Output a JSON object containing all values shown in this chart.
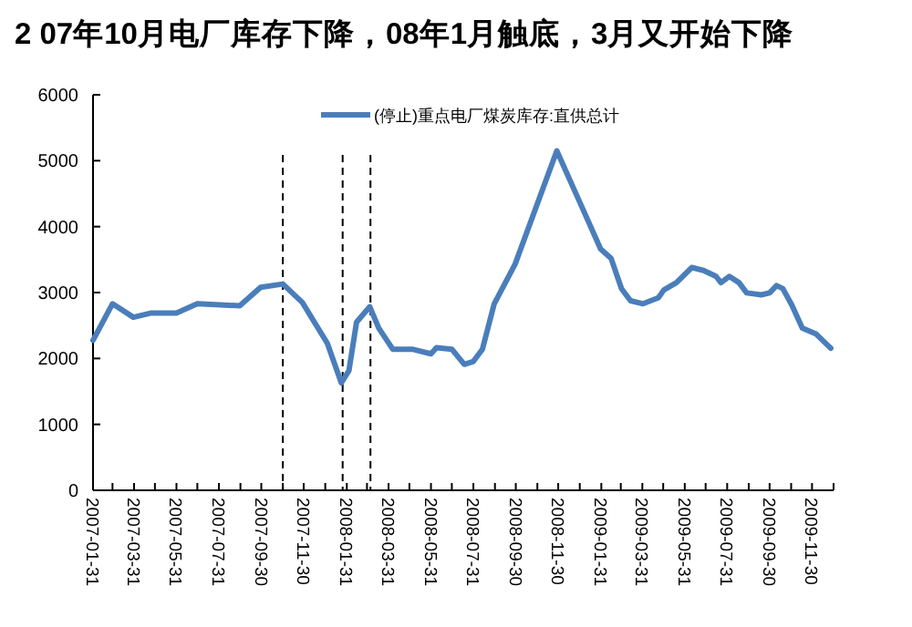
{
  "chart_data": {
    "type": "line",
    "title": "2 07年10月电厂库存下降，08年1月触底，3月又开始下降",
    "x": [
      "2007-01-31",
      "2007-02-28",
      "2007-03-30",
      "2007-04-25",
      "2007-05-31",
      "2007-06-30",
      "2007-08-30",
      "2007-09-29",
      "2007-10-31",
      "2007-11-28",
      "2008-01-03",
      "2008-01-23",
      "2008-02-03",
      "2008-02-14",
      "2008-03-04",
      "2008-03-17",
      "2008-04-06",
      "2008-05-04",
      "2008-05-31",
      "2008-06-08",
      "2008-06-30",
      "2008-07-18",
      "2008-07-31",
      "2008-08-13",
      "2008-08-30",
      "2008-09-29",
      "2008-11-28",
      "2008-12-30",
      "2009-01-30",
      "2009-02-14",
      "2009-03-01",
      "2009-03-14",
      "2009-04-01",
      "2009-04-23",
      "2009-05-01",
      "2009-05-19",
      "2009-06-10",
      "2009-06-27",
      "2009-07-15",
      "2009-07-22",
      "2009-08-03",
      "2009-08-17",
      "2009-08-28",
      "2009-09-18",
      "2009-09-30",
      "2009-10-10",
      "2009-10-19",
      "2009-11-01",
      "2009-11-16",
      "2009-12-06",
      "2009-12-27"
    ],
    "series": [
      {
        "name": "(停止)重点电厂煤炭库存:直供总计",
        "color": "#4a7ebb",
        "values": [
          2275,
          2830,
          2625,
          2690,
          2690,
          2830,
          2800,
          3080,
          3130,
          2850,
          2230,
          1630,
          1815,
          2550,
          2785,
          2460,
          2140,
          2140,
          2070,
          2165,
          2140,
          1910,
          1955,
          2140,
          2830,
          3430,
          5150,
          4395,
          3660,
          3520,
          3060,
          2875,
          2830,
          2920,
          3040,
          3150,
          3380,
          3335,
          3245,
          3150,
          3245,
          3150,
          2995,
          2965,
          2995,
          3105,
          3060,
          2810,
          2460,
          2370,
          2155
        ]
      }
    ],
    "xlim": [
      "2007-01-31",
      "2009-12-31"
    ],
    "xticks": [
      {
        "value": "2007-01-31",
        "label": "2007-01-31"
      },
      {
        "value": "2007-02-28",
        "label": null
      },
      {
        "value": "2007-03-31",
        "label": "2007-03-31"
      },
      {
        "value": "2007-04-30",
        "label": null
      },
      {
        "value": "2007-05-31",
        "label": "2007-05-31"
      },
      {
        "value": "2007-06-30",
        "label": null
      },
      {
        "value": "2007-07-31",
        "label": "2007-07-31"
      },
      {
        "value": "2007-08-31",
        "label": null
      },
      {
        "value": "2007-09-30",
        "label": "2007-09-30"
      },
      {
        "value": "2007-10-31",
        "label": null
      },
      {
        "value": "2007-11-30",
        "label": "2007-11-30"
      },
      {
        "value": "2007-12-31",
        "label": null
      },
      {
        "value": "2008-01-31",
        "label": "2008-01-31"
      },
      {
        "value": "2008-02-29",
        "label": null
      },
      {
        "value": "2008-03-31",
        "label": "2008-03-31"
      },
      {
        "value": "2008-04-30",
        "label": null
      },
      {
        "value": "2008-05-31",
        "label": "2008-05-31"
      },
      {
        "value": "2008-06-30",
        "label": null
      },
      {
        "value": "2008-07-31",
        "label": "2008-07-31"
      },
      {
        "value": "2008-08-31",
        "label": null
      },
      {
        "value": "2008-09-30",
        "label": "2008-09-30"
      },
      {
        "value": "2008-10-31",
        "label": null
      },
      {
        "value": "2008-11-30",
        "label": "2008-11-30"
      },
      {
        "value": "2008-12-31",
        "label": null
      },
      {
        "value": "2009-01-31",
        "label": "2009-01-31"
      },
      {
        "value": "2009-02-28",
        "label": null
      },
      {
        "value": "2009-03-31",
        "label": "2009-03-31"
      },
      {
        "value": "2009-04-30",
        "label": null
      },
      {
        "value": "2009-05-31",
        "label": "2009-05-31"
      },
      {
        "value": "2009-06-30",
        "label": null
      },
      {
        "value": "2009-07-31",
        "label": "2009-07-31"
      },
      {
        "value": "2009-08-31",
        "label": null
      },
      {
        "value": "2009-09-30",
        "label": "2009-09-30"
      },
      {
        "value": "2009-10-31",
        "label": null
      },
      {
        "value": "2009-11-30",
        "label": "2009-11-30"
      },
      {
        "value": "2009-12-31",
        "label": null
      }
    ],
    "ylim": [
      0,
      6000
    ],
    "yticks": [
      0,
      1000,
      2000,
      3000,
      4000,
      5000,
      6000
    ],
    "ref_lines": [
      {
        "axis": "x",
        "value": "2007-10-31",
        "color": "#000000",
        "line_style": "dashed"
      },
      {
        "axis": "x",
        "value": "2008-01-25",
        "color": "#000000",
        "line_style": "dashed"
      },
      {
        "axis": "x",
        "value": "2008-03-05",
        "color": "#000000",
        "line_style": "dashed"
      }
    ],
    "legend": "top",
    "grid": false,
    "marker": "none",
    "line_style": "solid"
  }
}
